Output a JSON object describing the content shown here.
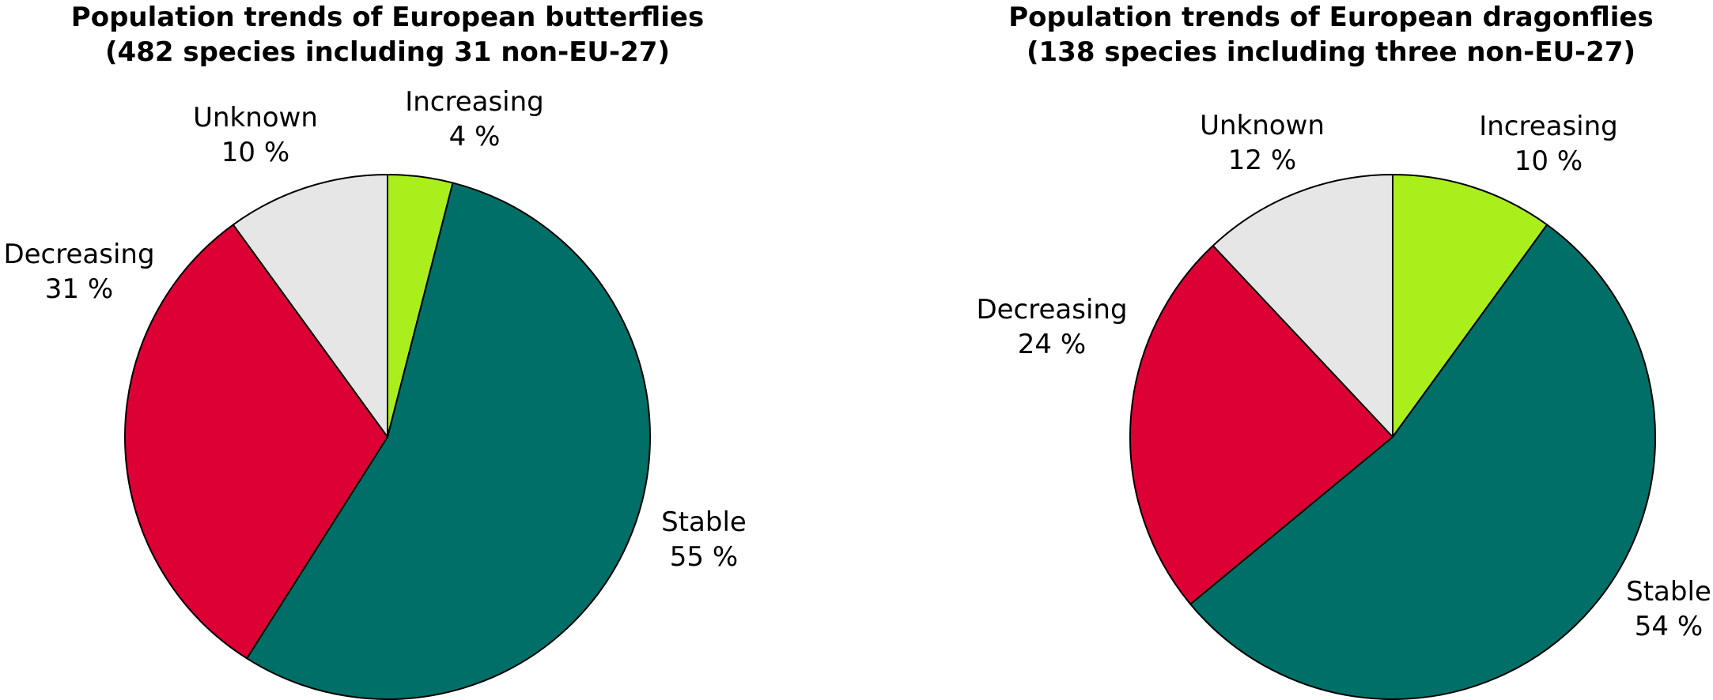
{
  "chart_data": [
    {
      "type": "pie",
      "title": "Population trends of European butterflies",
      "subtitle": "(482 species including 31 non-EU-27)",
      "slices": [
        {
          "label": "Increasing",
          "value": 4,
          "value_label": "4 %",
          "color": "#aaee1c"
        },
        {
          "label": "Stable",
          "value": 55,
          "value_label": "55 %",
          "color": "#006f67"
        },
        {
          "label": "Decreasing",
          "value": 31,
          "value_label": "31 %",
          "color": "#dc0035"
        },
        {
          "label": "Unknown",
          "value": 10,
          "value_label": "10 %",
          "color": "#e6e6e6"
        }
      ]
    },
    {
      "type": "pie",
      "title": "Population trends of European dragonflies",
      "subtitle": "(138 species including three non-EU-27)",
      "slices": [
        {
          "label": "Increasing",
          "value": 10,
          "value_label": "10 %",
          "color": "#aaee1c"
        },
        {
          "label": "Stable",
          "value": 54,
          "value_label": "54 %",
          "color": "#006f67"
        },
        {
          "label": "Decreasing",
          "value": 24,
          "value_label": "24 %",
          "color": "#dc0035"
        },
        {
          "label": "Unknown",
          "value": 12,
          "value_label": "12 %",
          "color": "#e6e6e6"
        }
      ]
    }
  ]
}
